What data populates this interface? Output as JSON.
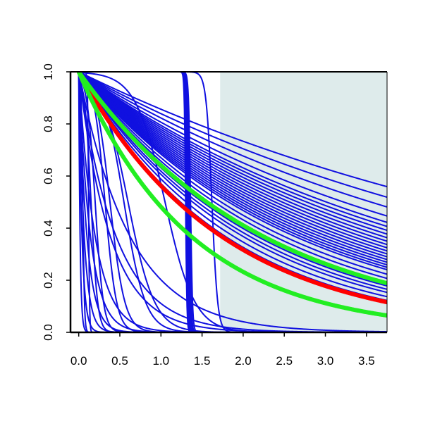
{
  "chart_data": {
    "type": "line",
    "title": "",
    "xlabel": "",
    "ylabel": "",
    "xlim": [
      -0.1,
      3.75
    ],
    "ylim": [
      0.0,
      1.0
    ],
    "x_ticks": [
      0.0,
      0.5,
      1.0,
      1.5,
      2.0,
      2.5,
      3.0,
      3.5
    ],
    "x_tick_labels": [
      "0.0",
      "0.5",
      "1.0",
      "1.5",
      "2.0",
      "2.5",
      "3.0",
      "3.5"
    ],
    "y_ticks": [
      0.0,
      0.2,
      0.4,
      0.6,
      0.8,
      1.0
    ],
    "y_tick_labels": [
      "0.0",
      "0.2",
      "0.4",
      "0.6",
      "0.8",
      "1.0"
    ],
    "grid": false,
    "legend": "none",
    "shaded_region": {
      "x_from": 1.72,
      "x_to": 3.75,
      "color": "#deebeb"
    },
    "colors": {
      "background_curves": "#1010e0",
      "highlight_red": "#ff0000",
      "highlight_green": "#22ee22",
      "axis": "#000000"
    },
    "series": [
      {
        "kind": "exp",
        "color": "blue",
        "start": 1.0,
        "decay": 0.155
      },
      {
        "kind": "exp",
        "color": "blue",
        "start": 1.0,
        "decay": 0.175
      },
      {
        "kind": "exp",
        "color": "blue",
        "start": 1.0,
        "decay": 0.195
      },
      {
        "kind": "exp",
        "color": "blue",
        "start": 1.0,
        "decay": 0.215
      },
      {
        "kind": "exp",
        "color": "blue",
        "start": 1.0,
        "decay": 0.23
      },
      {
        "kind": "exp",
        "color": "blue",
        "start": 1.0,
        "decay": 0.24
      },
      {
        "kind": "exp",
        "color": "blue",
        "start": 1.0,
        "decay": 0.25
      },
      {
        "kind": "exp",
        "color": "blue",
        "start": 1.0,
        "decay": 0.26
      },
      {
        "kind": "exp",
        "color": "blue",
        "start": 1.0,
        "decay": 0.27
      },
      {
        "kind": "exp",
        "color": "blue",
        "start": 1.0,
        "decay": 0.28
      },
      {
        "kind": "exp",
        "color": "blue",
        "start": 1.0,
        "decay": 0.29
      },
      {
        "kind": "exp",
        "color": "blue",
        "start": 1.0,
        "decay": 0.3
      },
      {
        "kind": "exp",
        "color": "blue",
        "start": 1.0,
        "decay": 0.31
      },
      {
        "kind": "exp",
        "color": "blue",
        "start": 1.0,
        "decay": 0.32
      },
      {
        "kind": "exp",
        "color": "blue",
        "start": 1.0,
        "decay": 0.33
      },
      {
        "kind": "exp",
        "color": "blue",
        "start": 1.0,
        "decay": 0.34
      },
      {
        "kind": "exp",
        "color": "blue",
        "start": 1.0,
        "decay": 0.35
      },
      {
        "kind": "exp",
        "color": "blue",
        "start": 1.0,
        "decay": 0.36
      },
      {
        "kind": "exp",
        "color": "blue",
        "start": 1.0,
        "decay": 0.37
      },
      {
        "kind": "exp",
        "color": "blue",
        "start": 1.0,
        "decay": 0.38
      },
      {
        "kind": "exp",
        "color": "blue",
        "start": 1.0,
        "decay": 0.4
      },
      {
        "kind": "exp",
        "color": "blue",
        "start": 1.0,
        "decay": 0.42
      },
      {
        "kind": "exp",
        "color": "blue",
        "start": 1.0,
        "decay": 0.44
      },
      {
        "kind": "exp",
        "color": "blue",
        "start": 1.0,
        "decay": 0.46
      },
      {
        "kind": "exp",
        "color": "blue",
        "start": 1.0,
        "decay": 0.48
      },
      {
        "kind": "exp",
        "color": "blue",
        "start": 1.0,
        "decay": 0.5
      },
      {
        "kind": "exp",
        "color": "blue",
        "start": 1.0,
        "decay": 0.53
      },
      {
        "kind": "exp",
        "color": "blue",
        "start": 1.0,
        "decay": 0.56
      },
      {
        "kind": "exp",
        "color": "blue",
        "start": 1.0,
        "decay": 1.6
      },
      {
        "kind": "exp",
        "color": "blue",
        "start": 1.0,
        "decay": 2.2
      },
      {
        "kind": "exp",
        "color": "blue",
        "start": 1.0,
        "decay": 2.6
      },
      {
        "kind": "exp",
        "color": "blue",
        "start": 1.0,
        "decay": 5.0
      },
      {
        "kind": "exp",
        "color": "blue",
        "start": 1.0,
        "decay": 7.0
      },
      {
        "kind": "exp",
        "color": "blue",
        "start": 1.0,
        "decay": 10.0
      },
      {
        "kind": "exp",
        "color": "blue",
        "start": 1.0,
        "decay": 15.0
      },
      {
        "kind": "exp",
        "color": "blue",
        "start": 1.0,
        "decay": 25.0
      },
      {
        "kind": "exp",
        "color": "blue",
        "start": 1.0,
        "decay": 60.0
      },
      {
        "kind": "sigmoid",
        "color": "blue",
        "center": 0.38,
        "width": 0.09
      },
      {
        "kind": "sigmoid",
        "color": "blue",
        "center": 0.55,
        "width": 0.13
      },
      {
        "kind": "sigmoid",
        "color": "blue",
        "center": 0.32,
        "width": 0.07
      },
      {
        "kind": "sigmoid",
        "color": "blue",
        "center": 0.6,
        "width": 0.16
      },
      {
        "kind": "sigmoid",
        "color": "blue",
        "center": 1.05,
        "width": 0.18
      },
      {
        "kind": "sigmoid",
        "color": "blue",
        "center": 0.12,
        "width": 0.006
      },
      {
        "kind": "sigmoid",
        "color": "blue",
        "center": 0.05,
        "width": 0.01
      },
      {
        "kind": "sigmoid",
        "color": "blue",
        "center": 0.15,
        "width": 0.04
      },
      {
        "kind": "sigmoid",
        "color": "blue",
        "center": 0.2,
        "width": 0.05
      },
      {
        "kind": "sigmoid",
        "color": "blue",
        "center": 1.3,
        "width": 0.008
      },
      {
        "kind": "sigmoid",
        "color": "blue",
        "center": 1.31,
        "width": 0.008
      },
      {
        "kind": "sigmoid",
        "color": "blue",
        "center": 1.32,
        "width": 0.009
      },
      {
        "kind": "sigmoid",
        "color": "blue",
        "center": 1.33,
        "width": 0.009
      },
      {
        "kind": "sigmoid",
        "color": "blue",
        "center": 1.34,
        "width": 0.01
      },
      {
        "kind": "sigmoid",
        "color": "blue",
        "center": 1.35,
        "width": 0.01
      },
      {
        "kind": "sigmoid",
        "color": "blue",
        "center": 1.36,
        "width": 0.012
      },
      {
        "kind": "sigmoid",
        "color": "blue",
        "center": 1.62,
        "width": 0.035
      },
      {
        "kind": "exp",
        "color": "red",
        "start": 1.0,
        "decay": 0.575,
        "bold": true
      },
      {
        "kind": "exp",
        "color": "green",
        "start": 1.0,
        "decay": 0.445,
        "bold": true
      },
      {
        "kind": "exp",
        "color": "green",
        "start": 1.0,
        "decay": 0.73,
        "bold": true
      }
    ]
  }
}
